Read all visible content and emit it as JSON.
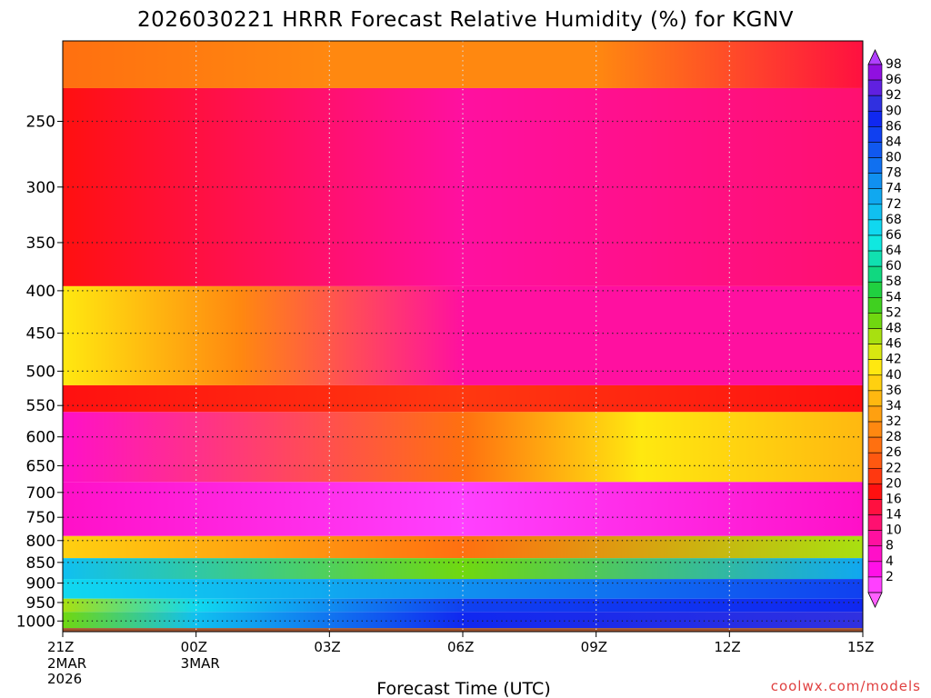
{
  "chart_data": {
    "type": "heatmap",
    "title": "2026030221 HRRR Forecast Relative Humidity (%) for KGNV",
    "xlabel": "Forecast Time (UTC)",
    "ylabel": "",
    "credit": "coolwx.com/models",
    "x_range_hours": [
      0,
      18
    ],
    "y_range_hpa": [
      1030,
      200
    ],
    "y_scale": "log-pressure",
    "y_ticks": [
      "250",
      "300",
      "350",
      "400",
      "450",
      "500",
      "550",
      "600",
      "650",
      "700",
      "750",
      "800",
      "850",
      "900",
      "950",
      "1000"
    ],
    "x_ticks": [
      {
        "label": "21Z",
        "sub": [
          "2MAR",
          "2026"
        ],
        "hour": 0
      },
      {
        "label": "00Z",
        "sub": [
          "3MAR"
        ],
        "hour": 3
      },
      {
        "label": "03Z",
        "sub": [],
        "hour": 6
      },
      {
        "label": "06Z",
        "sub": [],
        "hour": 9
      },
      {
        "label": "09Z",
        "sub": [],
        "hour": 12
      },
      {
        "label": "12Z",
        "sub": [],
        "hour": 15
      },
      {
        "label": "15Z",
        "sub": [],
        "hour": 18
      }
    ],
    "grid": true,
    "colorbar": {
      "placement": "right",
      "levels": [
        "98",
        "96",
        "92",
        "90",
        "86",
        "84",
        "80",
        "78",
        "74",
        "72",
        "68",
        "66",
        "64",
        "60",
        "58",
        "54",
        "52",
        "48",
        "46",
        "42",
        "40",
        "36",
        "34",
        "32",
        "28",
        "26",
        "22",
        "20",
        "16",
        "14",
        "10",
        "8",
        "4",
        "2"
      ],
      "colors": [
        "#9010e0",
        "#6020e0",
        "#3030e0",
        "#1028f0",
        "#1040f0",
        "#1058f0",
        "#1070f0",
        "#1090f0",
        "#10a8f0",
        "#10c0f0",
        "#10d8f0",
        "#10e8e0",
        "#10e0b0",
        "#10d880",
        "#20d040",
        "#40d020",
        "#70d810",
        "#a8e010",
        "#d8e810",
        "#ffe810",
        "#ffd010",
        "#ffb810",
        "#ffa010",
        "#ff8810",
        "#ff7010",
        "#ff5810",
        "#ff3810",
        "#ff1010",
        "#ff1040",
        "#ff1070",
        "#ff10a0",
        "#ff10c8",
        "#ff10e8",
        "#ff40ff"
      ],
      "over_color": "#b040ff",
      "under_color": "#ff60ff"
    },
    "ground_color": "#a0522d",
    "layers": [
      {
        "top_hpa": 200,
        "bottom_hpa": 228,
        "rh_by_hour": [
          {
            "hour": 0,
            "value": 28
          },
          {
            "hour": 6,
            "value": 30
          },
          {
            "hour": 12,
            "value": 32
          },
          {
            "hour": 18,
            "value": 16
          }
        ]
      },
      {
        "top_hpa": 228,
        "bottom_hpa": 395,
        "rh_by_hour": [
          {
            "hour": 0,
            "value": 18
          },
          {
            "hour": 9,
            "value": 10
          },
          {
            "hour": 18,
            "value": 12
          }
        ]
      },
      {
        "top_hpa": 395,
        "bottom_hpa": 520,
        "rh_by_hour": [
          {
            "hour": 0,
            "value": 42
          },
          {
            "hour": 4,
            "value": 30
          },
          {
            "hour": 9,
            "value": 10
          },
          {
            "hour": 18,
            "value": 10
          }
        ]
      },
      {
        "top_hpa": 520,
        "bottom_hpa": 560,
        "rh_by_hour": [
          {
            "hour": 0,
            "value": 18
          },
          {
            "hour": 9,
            "value": 22
          },
          {
            "hour": 18,
            "value": 20
          }
        ]
      },
      {
        "top_hpa": 560,
        "bottom_hpa": 680,
        "rh_by_hour": [
          {
            "hour": 0,
            "value": 8
          },
          {
            "hour": 9,
            "value": 28
          },
          {
            "hour": 13,
            "value": 42
          },
          {
            "hour": 18,
            "value": 36
          }
        ]
      },
      {
        "top_hpa": 680,
        "bottom_hpa": 790,
        "rh_by_hour": [
          {
            "hour": 0,
            "value": 6
          },
          {
            "hour": 9,
            "value": 2
          },
          {
            "hour": 18,
            "value": 6
          }
        ]
      },
      {
        "top_hpa": 790,
        "bottom_hpa": 840,
        "rh_by_hour": [
          {
            "hour": 0,
            "value": 40
          },
          {
            "hour": 9,
            "value": 28
          },
          {
            "hour": 18,
            "value": 48
          }
        ]
      },
      {
        "top_hpa": 840,
        "bottom_hpa": 890,
        "rh_by_hour": [
          {
            "hour": 0,
            "value": 72
          },
          {
            "hour": 9,
            "value": 52
          },
          {
            "hour": 18,
            "value": 74
          }
        ]
      },
      {
        "top_hpa": 890,
        "bottom_hpa": 940,
        "rh_by_hour": [
          {
            "hour": 0,
            "value": 68
          },
          {
            "hour": 9,
            "value": 76
          },
          {
            "hour": 18,
            "value": 86
          }
        ]
      },
      {
        "top_hpa": 940,
        "bottom_hpa": 975,
        "rh_by_hour": [
          {
            "hour": 0,
            "value": 48
          },
          {
            "hour": 3,
            "value": 68
          },
          {
            "hour": 9,
            "value": 86
          },
          {
            "hour": 18,
            "value": 88
          }
        ]
      },
      {
        "top_hpa": 975,
        "bottom_hpa": 1020,
        "rh_by_hour": [
          {
            "hour": 0,
            "value": 52
          },
          {
            "hour": 3,
            "value": 70
          },
          {
            "hour": 9,
            "value": 90
          },
          {
            "hour": 18,
            "value": 92
          }
        ]
      }
    ]
  }
}
